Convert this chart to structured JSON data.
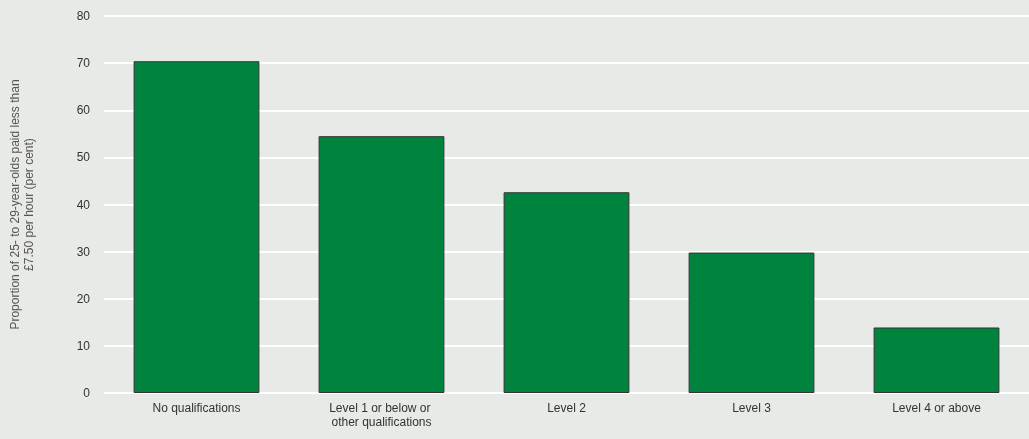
{
  "chart_data": {
    "type": "bar",
    "ylabel": "Proportion of 25- to 29-year-olds paid less than\n£7.50 per hour (per cent)",
    "categories": [
      "No qualifications",
      "Level 1 or below or other qualifications",
      "Level 2",
      "Level 3",
      "Level 4 or above"
    ],
    "values": [
      70.4,
      54.5,
      42.6,
      29.8,
      13.9
    ],
    "color": "#00843d",
    "ylim": [
      0,
      80
    ],
    "yticks": [
      0,
      10,
      20,
      30,
      40,
      50,
      60,
      70,
      80
    ],
    "grid": "y"
  }
}
